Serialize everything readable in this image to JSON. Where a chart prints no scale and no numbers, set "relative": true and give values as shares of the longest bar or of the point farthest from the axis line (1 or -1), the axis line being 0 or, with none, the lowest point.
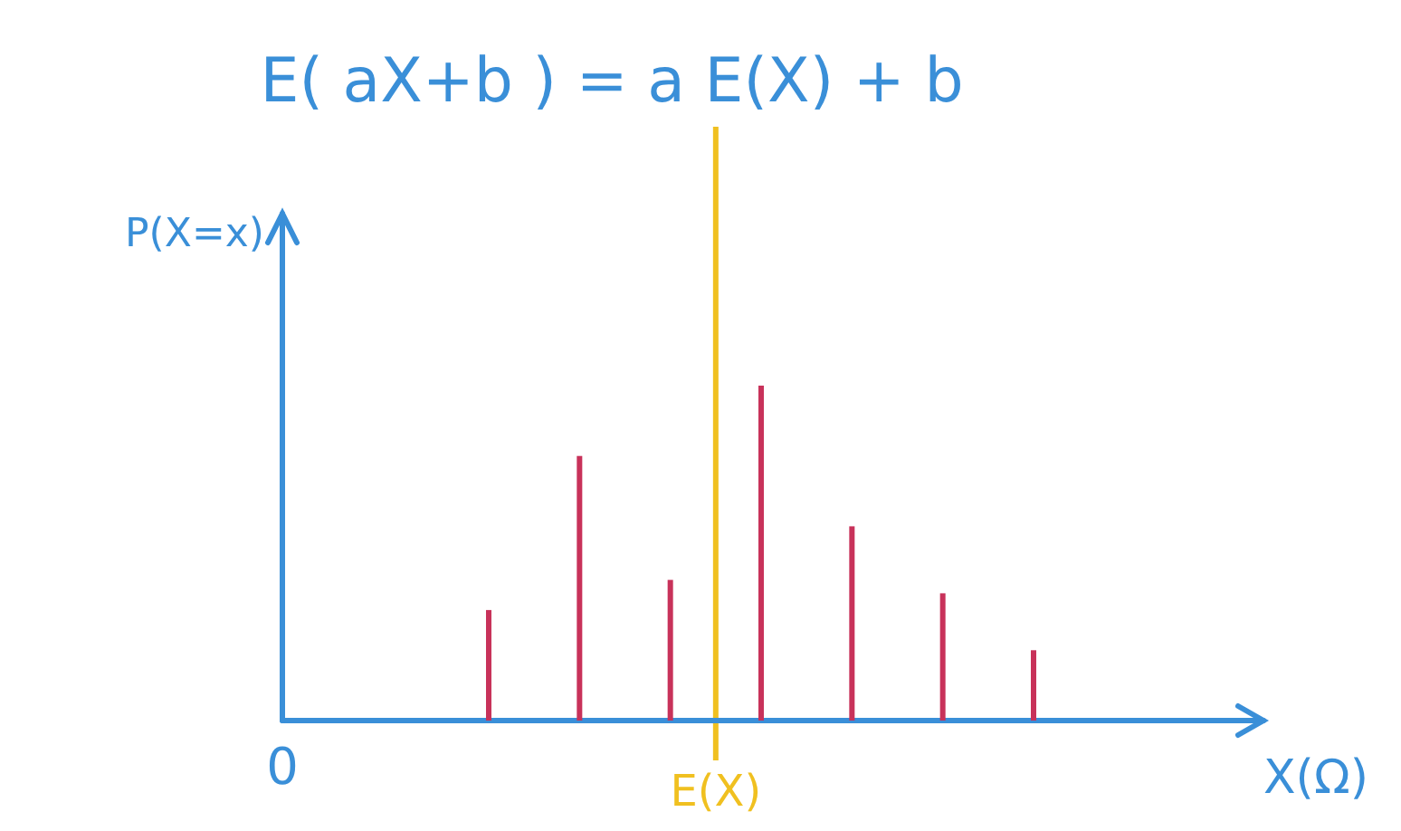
{
  "chart_data": {
    "type": "bar",
    "title": "E( aX+b ) = a E(X) + b",
    "xlabel": "X(Ω)",
    "categories": [
      null,
      null,
      null,
      null,
      null,
      null,
      null
    ],
    "relative": true,
    "series": [
      {
        "color": "#c8325a",
        "values": [
          0.33,
          0.79,
          0.42,
          1,
          0.58,
          0.38,
          0.21
        ]
      }
    ],
    "annotations": [
      "0",
      "E(X)",
      "P(X=x)"
    ]
  }
}
